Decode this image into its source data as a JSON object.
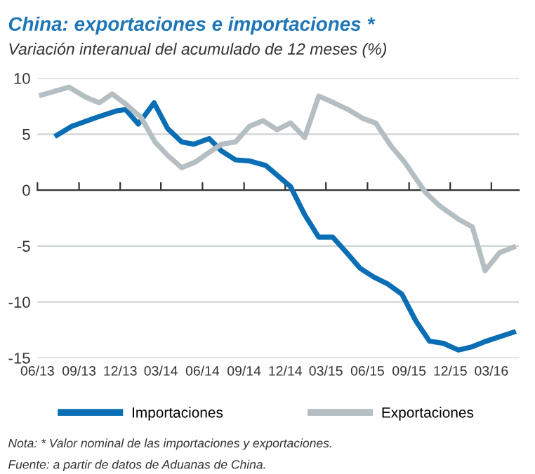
{
  "chart_data": {
    "type": "line",
    "title": "China: exportaciones e importaciones *",
    "subtitle": "Variación interanual del acumulado de 12 meses (%)",
    "series": [
      {
        "name": "Importaciones",
        "color": "#0a6eb4",
        "x": [
          "2013-07-14",
          "2013-08-16",
          "2013-10-10",
          "2013-11-25",
          "2013-12-13",
          "2014-01-10",
          "2014-02-14",
          "2014-03-16",
          "2014-04-16",
          "2014-05-13",
          "2014-06-16",
          "2014-07-13",
          "2014-08-13",
          "2014-09-13",
          "2014-10-19",
          "2014-12-13",
          "2015-01-13",
          "2015-02-13",
          "2015-03-16",
          "2015-04-16",
          "2015-05-16",
          "2015-06-16",
          "2015-07-16",
          "2015-08-16",
          "2015-09-16",
          "2015-10-16",
          "2015-11-16",
          "2015-12-19",
          "2016-01-19",
          "2016-02-19",
          "2016-04-19"
        ],
        "values": [
          4.9,
          5.7,
          6.5,
          7.1,
          7.2,
          5.9,
          7.8,
          5.5,
          4.3,
          4.1,
          4.6,
          3.5,
          2.7,
          2.6,
          2.2,
          0.3,
          -2.2,
          -4.2,
          -4.2,
          -5.6,
          -7.0,
          -7.8,
          -8.4,
          -9.3,
          -11.7,
          -13.5,
          -13.7,
          -14.3,
          -14.0,
          -13.5,
          -12.7
        ]
      },
      {
        "name": "Exportaciones",
        "color": "#b4bec3",
        "x": [
          "2013-06-10",
          "2013-08-10",
          "2013-09-16",
          "2013-10-16",
          "2013-11-13",
          "2013-12-13",
          "2014-01-16",
          "2014-02-16",
          "2014-03-16",
          "2014-04-16",
          "2014-05-16",
          "2014-06-13",
          "2014-07-13",
          "2014-08-13",
          "2014-09-13",
          "2014-10-13",
          "2014-11-13",
          "2014-12-13",
          "2015-01-13",
          "2015-02-13",
          "2015-03-19",
          "2015-04-19",
          "2015-05-22",
          "2015-06-19",
          "2015-07-22",
          "2015-08-22",
          "2015-10-07",
          "2015-11-07",
          "2015-12-19",
          "2016-01-19",
          "2016-02-16",
          "2016-03-19",
          "2016-04-19"
        ],
        "values": [
          8.5,
          9.2,
          8.3,
          7.8,
          8.6,
          7.7,
          6.5,
          4.3,
          3.1,
          2.0,
          2.5,
          3.3,
          4.1,
          4.3,
          5.7,
          6.2,
          5.4,
          6.0,
          4.7,
          8.4,
          7.8,
          7.2,
          6.4,
          6.0,
          4.0,
          2.5,
          -0.2,
          -1.4,
          -2.6,
          -3.3,
          -7.2,
          -5.6,
          -5.1
        ]
      }
    ],
    "xlim": [
      "2013-06",
      "2016-05"
    ],
    "xticks": [
      {
        "value": "2013-06",
        "label": "06/13"
      },
      {
        "value": "2013-09",
        "label": "09/13"
      },
      {
        "value": "2013-12",
        "label": "12/13"
      },
      {
        "value": "2014-03",
        "label": "03/14"
      },
      {
        "value": "2014-06",
        "label": "06/14"
      },
      {
        "value": "2014-09",
        "label": "09/14"
      },
      {
        "value": "2014-12",
        "label": "12/14"
      },
      {
        "value": "2015-03",
        "label": "03/15"
      },
      {
        "value": "2015-06",
        "label": "06/15"
      },
      {
        "value": "2015-09",
        "label": "09/15"
      },
      {
        "value": "2015-12",
        "label": "12/15"
      },
      {
        "value": "2016-03",
        "label": "03/16"
      }
    ],
    "ylim": [
      -15,
      10
    ],
    "yticks": [
      -15,
      -10,
      -5,
      0,
      5,
      10
    ],
    "grid": "y",
    "legend": "bottom",
    "line_style": "solid",
    "marker": "none",
    "annotations": [
      "Nota: * Valor nominal de las importaciones y exportaciones.",
      "Fuente: a partir de datos de Aduanas de China."
    ]
  }
}
